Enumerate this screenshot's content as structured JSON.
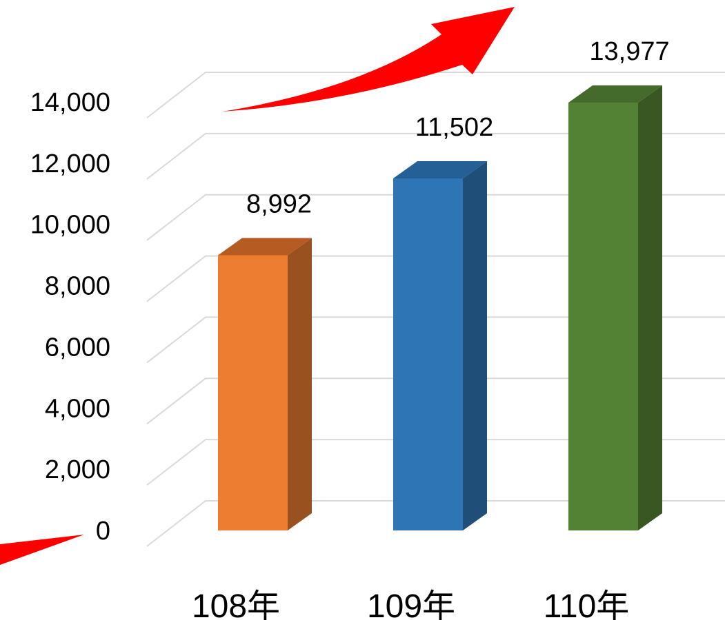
{
  "chart_data": {
    "type": "bar",
    "categories": [
      "108年",
      "109年",
      "110年"
    ],
    "values": [
      8992,
      11502,
      13977
    ],
    "data_labels": [
      "8,992",
      "11,502",
      "13,977"
    ],
    "y_ticks": [
      "0",
      "2,000",
      "4,000",
      "6,000",
      "8,000",
      "10,000",
      "12,000",
      "14,000"
    ],
    "ylim": [
      0,
      14000
    ],
    "grid": true,
    "three_d": true,
    "colors": {
      "front": [
        "#ed7d31",
        "#2e75b6",
        "#548235"
      ],
      "side": [
        "#9a5120",
        "#1f4e79",
        "#385723"
      ],
      "top": [
        "#b65c22",
        "#245f96",
        "#446a2c"
      ],
      "arrow": "#ff0000"
    }
  },
  "decorations": {
    "trend_arrow": "red-upward-arrow"
  }
}
